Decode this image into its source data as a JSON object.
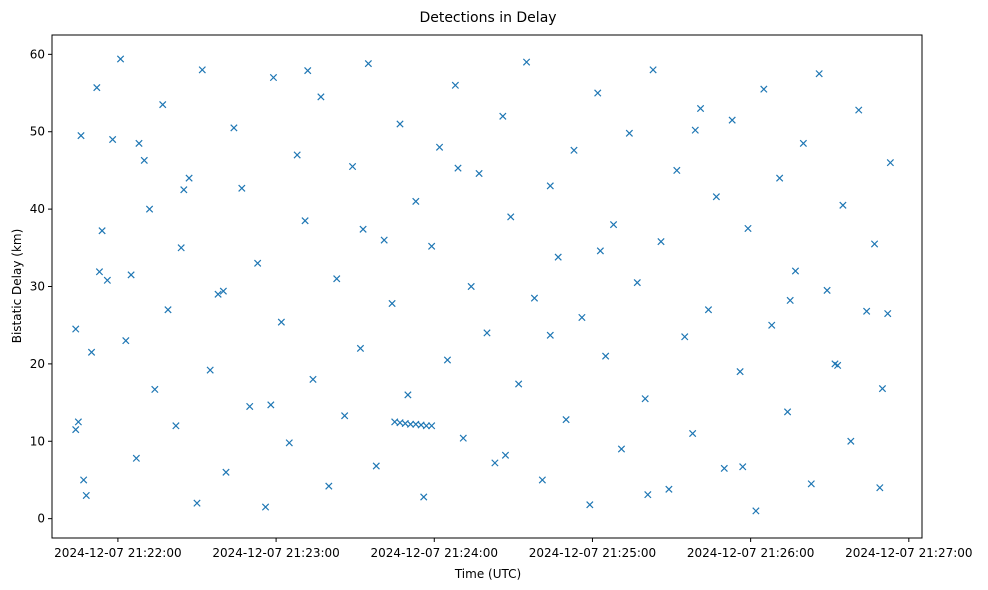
{
  "chart_data": {
    "type": "scatter",
    "title": "Detections in Delay",
    "xlabel": "Time (UTC)",
    "ylabel": "Bistatic Delay (km)",
    "x_axis_kind": "time",
    "xlim": [
      "2024-12-07 21:21:35",
      "2024-12-07 21:27:05"
    ],
    "ylim": [
      -2.5,
      62.5
    ],
    "x_ticks": [
      "2024-12-07 21:22:00",
      "2024-12-07 21:23:00",
      "2024-12-07 21:24:00",
      "2024-12-07 21:25:00",
      "2024-12-07 21:26:00",
      "2024-12-07 21:27:00"
    ],
    "y_ticks": [
      "0",
      "10",
      "20",
      "30",
      "40",
      "50",
      "60"
    ],
    "y_tick_values": [
      0,
      10,
      20,
      30,
      40,
      50,
      60
    ],
    "marker": "x",
    "marker_color": "#1f77b4",
    "grid": false,
    "legend": "none",
    "series": [
      {
        "x": [
          "2024-12-07 21:21:44",
          "2024-12-07 21:21:45",
          "2024-12-07 21:21:46",
          "2024-12-07 21:21:48",
          "2024-12-07 21:21:50",
          "2024-12-07 21:21:52",
          "2024-12-07 21:21:54",
          "2024-12-07 21:21:56",
          "2024-12-07 21:21:58",
          "2024-12-07 21:22:01",
          "2024-12-07 21:22:03",
          "2024-12-07 21:22:05",
          "2024-12-07 21:22:07",
          "2024-12-07 21:22:10",
          "2024-12-07 21:22:12",
          "2024-12-07 21:22:14",
          "2024-12-07 21:22:17",
          "2024-12-07 21:22:19",
          "2024-12-07 21:22:22",
          "2024-12-07 21:22:24",
          "2024-12-07 21:22:27",
          "2024-12-07 21:22:30",
          "2024-12-07 21:22:32",
          "2024-12-07 21:22:35",
          "2024-12-07 21:22:38",
          "2024-12-07 21:22:41",
          "2024-12-07 21:22:44",
          "2024-12-07 21:22:47",
          "2024-12-07 21:22:50",
          "2024-12-07 21:22:53",
          "2024-12-07 21:22:56",
          "2024-12-07 21:22:59",
          "2024-12-07 21:23:02",
          "2024-12-07 21:23:05",
          "2024-12-07 21:23:08",
          "2024-12-07 21:23:11",
          "2024-12-07 21:23:14",
          "2024-12-07 21:23:17",
          "2024-12-07 21:23:20",
          "2024-12-07 21:23:23",
          "2024-12-07 21:23:26",
          "2024-12-07 21:23:29",
          "2024-12-07 21:23:32",
          "2024-12-07 21:23:35",
          "2024-12-07 21:23:38",
          "2024-12-07 21:23:41",
          "2024-12-07 21:23:44",
          "2024-12-07 21:23:47",
          "2024-12-07 21:23:50",
          "2024-12-07 21:23:53",
          "2024-12-07 21:23:56",
          "2024-12-07 21:23:59",
          "2024-12-07 21:24:02",
          "2024-12-07 21:24:05",
          "2024-12-07 21:24:08",
          "2024-12-07 21:24:11",
          "2024-12-07 21:24:14",
          "2024-12-07 21:24:17",
          "2024-12-07 21:24:20",
          "2024-12-07 21:24:23",
          "2024-12-07 21:24:26",
          "2024-12-07 21:24:29",
          "2024-12-07 21:24:32",
          "2024-12-07 21:24:35",
          "2024-12-07 21:24:38",
          "2024-12-07 21:24:41",
          "2024-12-07 21:24:44",
          "2024-12-07 21:24:47",
          "2024-12-07 21:24:50",
          "2024-12-07 21:24:53",
          "2024-12-07 21:24:56",
          "2024-12-07 21:24:59",
          "2024-12-07 21:25:02",
          "2024-12-07 21:25:05",
          "2024-12-07 21:25:08",
          "2024-12-07 21:25:11",
          "2024-12-07 21:25:14",
          "2024-12-07 21:25:17",
          "2024-12-07 21:25:20",
          "2024-12-07 21:25:23",
          "2024-12-07 21:25:26",
          "2024-12-07 21:25:29",
          "2024-12-07 21:25:32",
          "2024-12-07 21:25:35",
          "2024-12-07 21:25:38",
          "2024-12-07 21:25:41",
          "2024-12-07 21:25:44",
          "2024-12-07 21:25:47",
          "2024-12-07 21:25:50",
          "2024-12-07 21:25:53",
          "2024-12-07 21:25:56",
          "2024-12-07 21:25:59",
          "2024-12-07 21:26:02",
          "2024-12-07 21:26:05",
          "2024-12-07 21:26:08",
          "2024-12-07 21:26:11",
          "2024-12-07 21:26:14",
          "2024-12-07 21:26:17",
          "2024-12-07 21:26:20",
          "2024-12-07 21:26:23",
          "2024-12-07 21:26:26",
          "2024-12-07 21:26:29",
          "2024-12-07 21:26:32",
          "2024-12-07 21:26:35",
          "2024-12-07 21:26:38",
          "2024-12-07 21:26:41",
          "2024-12-07 21:26:44",
          "2024-12-07 21:26:47",
          "2024-12-07 21:26:50",
          "2024-12-07 21:26:53",
          "2024-12-07 21:23:45",
          "2024-12-07 21:23:47",
          "2024-12-07 21:23:49",
          "2024-12-07 21:23:51",
          "2024-12-07 21:23:53",
          "2024-12-07 21:23:55",
          "2024-12-07 21:23:57",
          "2024-12-07 21:23:59",
          "2024-12-07 21:21:44",
          "2024-12-07 21:21:47",
          "2024-12-07 21:21:53",
          "2024-12-07 21:22:08",
          "2024-12-07 21:22:25",
          "2024-12-07 21:22:40",
          "2024-12-07 21:22:58",
          "2024-12-07 21:23:12",
          "2024-12-07 21:23:33",
          "2024-12-07 21:24:09",
          "2024-12-07 21:24:27",
          "2024-12-07 21:24:44",
          "2024-12-07 21:25:03",
          "2024-12-07 21:25:21",
          "2024-12-07 21:25:39",
          "2024-12-07 21:25:57",
          "2024-12-07 21:26:15",
          "2024-12-07 21:26:33",
          "2024-12-07 21:26:49",
          "2024-12-07 21:26:52"
        ],
        "y": [
          24.5,
          12.5,
          49.5,
          3.0,
          21.5,
          55.7,
          37.2,
          30.8,
          49.0,
          59.4,
          23.0,
          31.5,
          7.8,
          46.3,
          40.0,
          16.7,
          53.5,
          27.0,
          12.0,
          35.0,
          44.0,
          2.0,
          58.0,
          19.2,
          29.0,
          6.0,
          50.5,
          42.7,
          14.5,
          33.0,
          1.5,
          57.0,
          25.4,
          9.8,
          47.0,
          38.5,
          18.0,
          54.5,
          4.2,
          31.0,
          13.3,
          45.5,
          22.0,
          58.8,
          6.8,
          36.0,
          27.8,
          51.0,
          16.0,
          41.0,
          2.8,
          35.2,
          48.0,
          20.5,
          56.0,
          10.4,
          30.0,
          44.6,
          24.0,
          7.2,
          52.0,
          39.0,
          17.4,
          59.0,
          28.5,
          5.0,
          43.0,
          33.8,
          12.8,
          47.6,
          26.0,
          1.8,
          55.0,
          21.0,
          38.0,
          9.0,
          49.8,
          30.5,
          15.5,
          58.0,
          35.8,
          3.8,
          45.0,
          23.5,
          11.0,
          53.0,
          27.0,
          41.6,
          6.5,
          51.5,
          19.0,
          37.5,
          1.0,
          55.5,
          25.0,
          44.0,
          13.8,
          32.0,
          48.5,
          4.5,
          57.5,
          29.5,
          20.0,
          40.5,
          10.0,
          52.8,
          26.8,
          35.5,
          16.8,
          46.0,
          12.5,
          12.4,
          12.3,
          12.2,
          12.2,
          12.1,
          12.0,
          12.0,
          11.5,
          5.0,
          31.9,
          48.5,
          42.5,
          29.4,
          14.7,
          57.9,
          37.4,
          45.3,
          8.2,
          23.7,
          34.6,
          3.1,
          50.2,
          6.7,
          28.2,
          19.8,
          4.0,
          26.5
        ]
      }
    ]
  }
}
